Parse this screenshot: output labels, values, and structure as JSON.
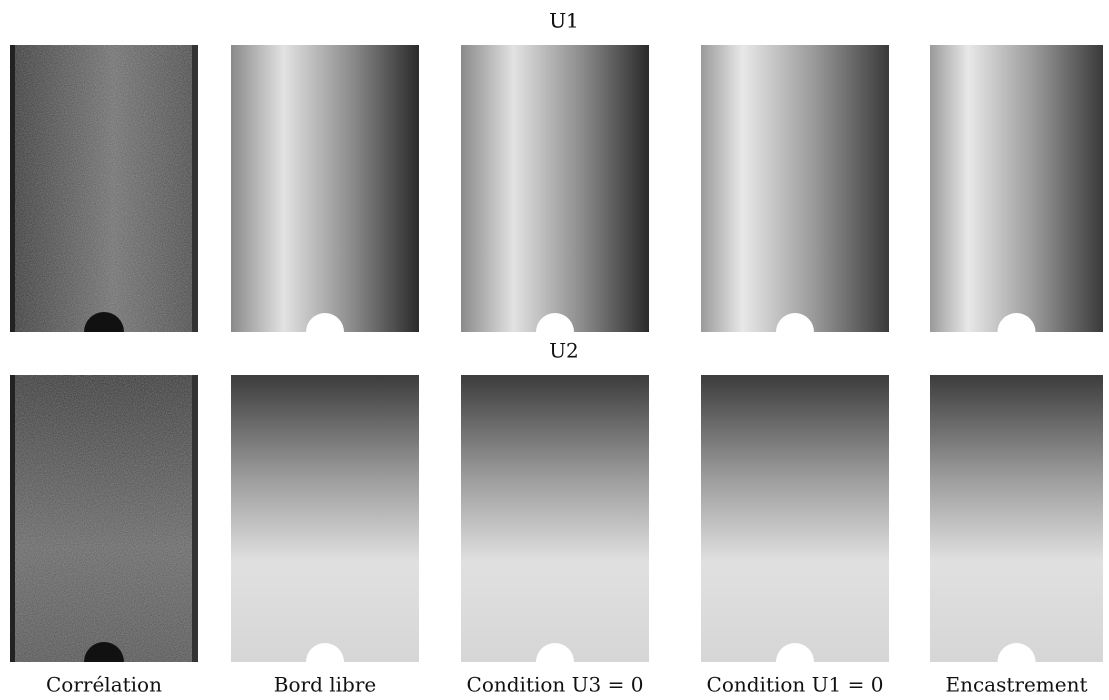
{
  "rows": [
    {
      "label": "U1"
    },
    {
      "label": "U2"
    }
  ],
  "columns": [
    {
      "label": "Corrélation"
    },
    {
      "label": "Bord libre"
    },
    {
      "label": "Condition U3 = 0"
    },
    {
      "label": "Condition U1 = 0"
    },
    {
      "label": "Encastrement"
    }
  ]
}
